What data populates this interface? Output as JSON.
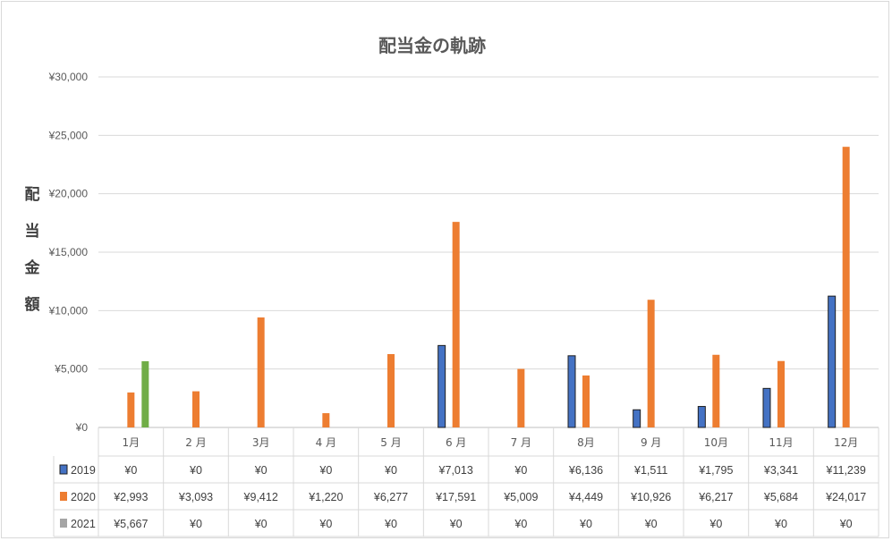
{
  "chart_data": {
    "type": "bar",
    "title": "配当金の軌跡",
    "ylabel": "配当金額",
    "xlabel": "",
    "ylim": [
      0,
      30000
    ],
    "yticks": [
      "¥0",
      "¥5,000",
      "¥10,000",
      "¥15,000",
      "¥20,000",
      "¥25,000",
      "¥30,000"
    ],
    "grid": true,
    "legend": "data-table",
    "categories": [
      "1月",
      "2 月",
      "3月",
      "4 月",
      "5 月",
      "6 月",
      "7 月",
      "8月",
      "9 月",
      "10月",
      "11月",
      "12月"
    ],
    "series": [
      {
        "name": "2019",
        "color": "#4472c4",
        "values": [
          0,
          0,
          0,
          0,
          0,
          7013,
          0,
          6136,
          1511,
          1795,
          3341,
          11239
        ],
        "labels": [
          "¥0",
          "¥0",
          "¥0",
          "¥0",
          "¥0",
          "¥7,013",
          "¥0",
          "¥6,136",
          "¥1,511",
          "¥1,795",
          "¥3,341",
          "¥11,239"
        ]
      },
      {
        "name": "2020",
        "color": "#ed7d31",
        "values": [
          2993,
          3093,
          9412,
          1220,
          6277,
          17591,
          5009,
          4449,
          10926,
          6217,
          5684,
          24017
        ],
        "labels": [
          "¥2,993",
          "¥3,093",
          "¥9,412",
          "¥1,220",
          "¥6,277",
          "¥17,591",
          "¥5,009",
          "¥4,449",
          "¥10,926",
          "¥6,217",
          "¥5,684",
          "¥24,017"
        ]
      },
      {
        "name": "2021",
        "color": "#70ad47",
        "legend_color": "#a5a5a5",
        "values": [
          5667,
          0,
          0,
          0,
          0,
          0,
          0,
          0,
          0,
          0,
          0,
          0
        ],
        "labels": [
          "¥5,667",
          "¥0",
          "¥0",
          "¥0",
          "¥0",
          "¥0",
          "¥0",
          "¥0",
          "¥0",
          "¥0",
          "¥0",
          "¥0"
        ]
      }
    ]
  }
}
